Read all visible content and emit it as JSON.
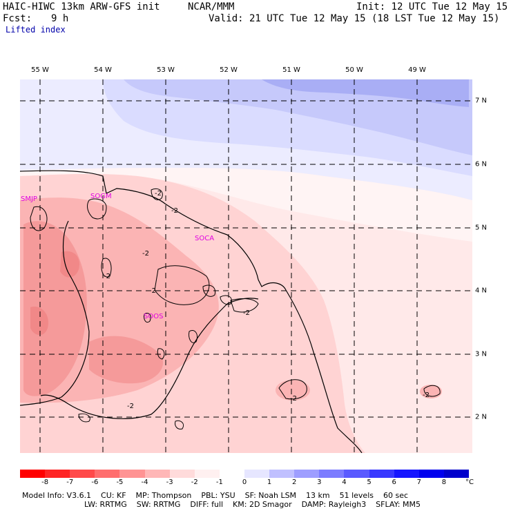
{
  "header": {
    "model_title": "HAIC-HIWC 13km ARW-GFS init",
    "org": "NCAR/MMM",
    "init": "Init: 12 UTC Tue 12 May 15",
    "fcst_label": "Fcst:",
    "fcst_value": "9 h",
    "valid": "Valid: 21 UTC Tue 12 May 15 (18 LST Tue 12 May 15)",
    "field": "Lifted index"
  },
  "map": {
    "lon_labels": [
      "55 W",
      "54 W",
      "53 W",
      "52 W",
      "51 W",
      "50 W",
      "49 W"
    ],
    "lat_labels": [
      "7 N",
      "6 N",
      "5 N",
      "4 N",
      "3 N",
      "2 N"
    ],
    "stations": [
      "SMJP",
      "SOGM",
      "SOCA",
      "SOOS"
    ],
    "contour_labels": [
      "-2",
      "-2",
      "-2",
      "-2",
      "-2",
      "-2",
      "-2",
      "-2",
      "-2"
    ]
  },
  "colorbar": {
    "colors": [
      "#ff0000",
      "#ff2525",
      "#ff4a4a",
      "#ff6e6e",
      "#ff9393",
      "#ffb7b7",
      "#ffdbdb",
      "#fff0f0",
      "#ffffff",
      "#e6e6ff",
      "#c0c0ff",
      "#9e9eff",
      "#7c7cff",
      "#5a5aff",
      "#3838ff",
      "#1616ff",
      "#0000ee",
      "#0000cc"
    ],
    "ticks": [
      "-8",
      "-7",
      "-6",
      "-5",
      "-4",
      "-3",
      "-2",
      "-1",
      "0",
      "1",
      "2",
      "3",
      "4",
      "5",
      "6",
      "7",
      "8"
    ],
    "unit": "°C"
  },
  "model_info": {
    "line1": [
      "Model Info: V3.6.1",
      "CU: KF",
      "MP: Thompson",
      "PBL: YSU",
      "SF: Noah LSM",
      "13 km",
      "51 levels",
      "60 sec"
    ],
    "line2": [
      "LW: RRTMG",
      "SW: RRTMG",
      "DIFF: full",
      "KM: 2D Smagor",
      "DAMP: Rayleigh3",
      "SFLAY: MM5"
    ]
  }
}
